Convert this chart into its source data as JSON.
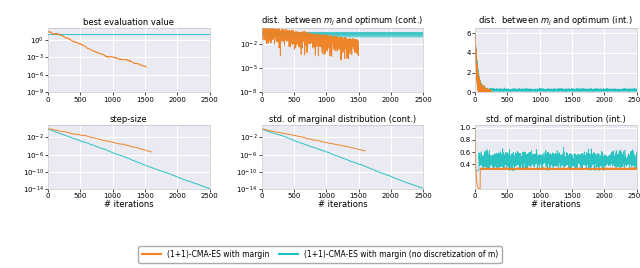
{
  "orange_color": "#F08020",
  "cyan_color": "#20C0C0",
  "n_iter": 2500,
  "titles": [
    "best evaluation value",
    "dist.  between $m_j$ and optimum (cont.)",
    "dist.  between $m_j$ and optimum (int.)",
    "step-size",
    "std. of marginal distribution (cont.)",
    "std. of marginal distribution (int.)"
  ],
  "xlabel": "# iterations",
  "legend_orange": "(1+1)-CMA-ES with margin",
  "legend_cyan": "(1+1)-CMA-ES with margin (no discretization of m)",
  "bg_color": "#eaeaf2",
  "grid_color": "#ffffff",
  "xlim": [
    0,
    2500
  ],
  "xticks": [
    0,
    500,
    1000,
    1500,
    2000,
    2500
  ]
}
